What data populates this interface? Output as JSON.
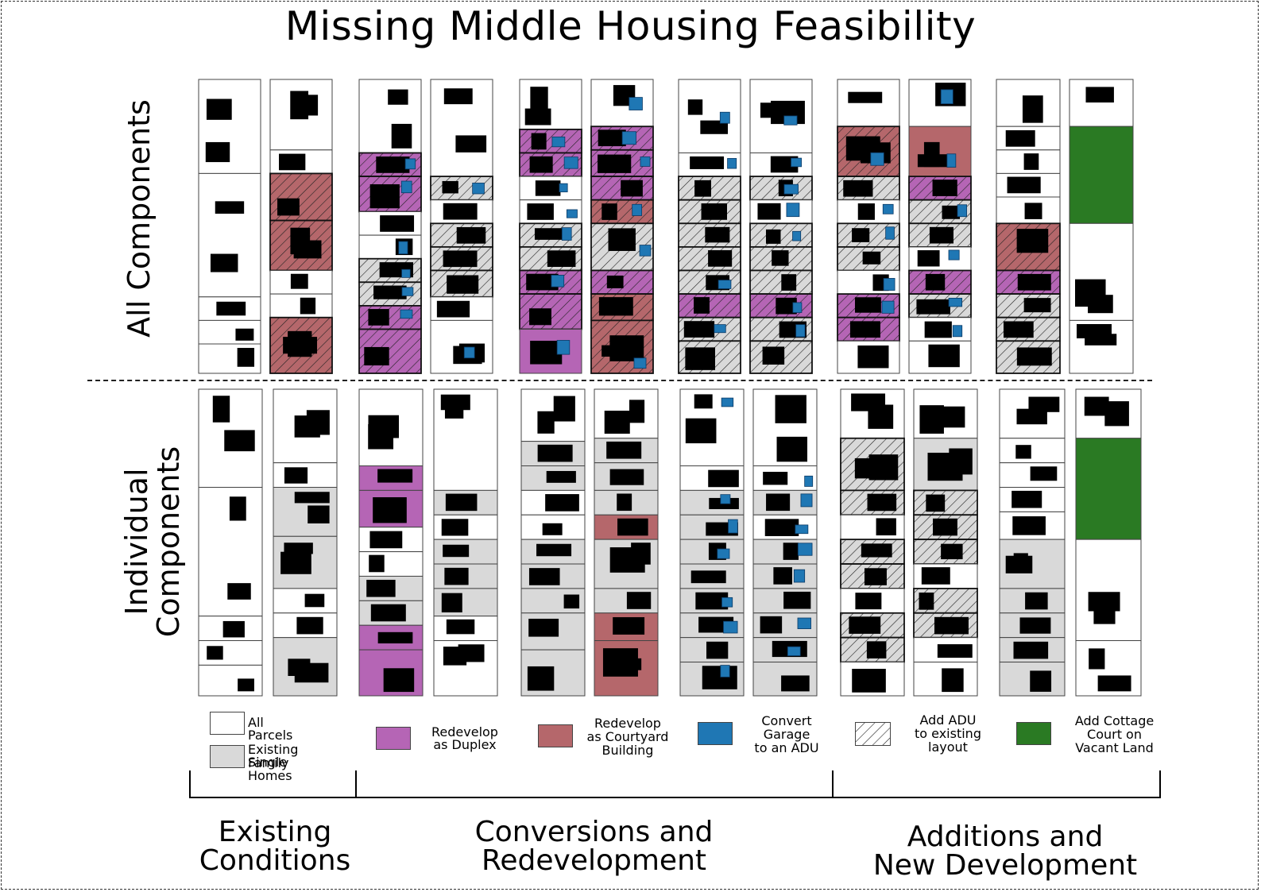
{
  "title": "Missing Middle Housing Feasibility",
  "row_labels": {
    "top": "All Components",
    "bottom_line1": "Individual",
    "bottom_line2": "Components"
  },
  "legend": [
    {
      "key": "all-parcels",
      "line1": "All Parcels",
      "line2": "",
      "line3": "",
      "color": "#ffffff",
      "pattern": "none"
    },
    {
      "key": "existing-sfh",
      "line1": "Existing Single",
      "line2": "Family Homes",
      "line3": "",
      "color": "#d9d9d9",
      "pattern": "none"
    },
    {
      "key": "duplex",
      "line1": "Redevelop",
      "line2": "as Duplex",
      "line3": "",
      "color": "#b565b5",
      "pattern": "none"
    },
    {
      "key": "courtyard",
      "line1": "Redevelop",
      "line2": "as Courtyard",
      "line3": "Building",
      "color": "#b5676b",
      "pattern": "none"
    },
    {
      "key": "garage-adu",
      "line1": "Convert",
      "line2": "Garage",
      "line3": "to an ADU",
      "color": "#1f77b4",
      "pattern": "none"
    },
    {
      "key": "add-adu",
      "line1": "Add ADU",
      "line2": "to existing",
      "line3": "layout",
      "color": "#ffffff",
      "pattern": "hatch"
    },
    {
      "key": "cottage",
      "line1": "Add Cottage",
      "line2": "Court on",
      "line3": "Vacant Land",
      "color": "#2a7a23",
      "pattern": "none"
    }
  ],
  "groups": [
    {
      "line1": "Existing",
      "line2": "Conditions"
    },
    {
      "line1": "Conversions and",
      "line2": "Redevelopment"
    },
    {
      "line1": "Additions and",
      "line2": "New Development"
    }
  ],
  "colors": {
    "building": "#000000",
    "parcel_outline": "#444444",
    "duplex": "#b565b5",
    "courtyard": "#b5676b",
    "garage": "#1f77b4",
    "cottage": "#2a7a23",
    "existing": "#d9d9d9"
  }
}
